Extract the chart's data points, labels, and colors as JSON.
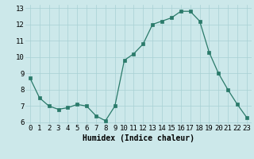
{
  "x": [
    0,
    1,
    2,
    3,
    4,
    5,
    6,
    7,
    8,
    9,
    10,
    11,
    12,
    13,
    14,
    15,
    16,
    17,
    18,
    19,
    20,
    21,
    22,
    23
  ],
  "y": [
    8.7,
    7.5,
    7.0,
    6.8,
    6.9,
    7.1,
    7.0,
    6.4,
    6.1,
    7.0,
    9.8,
    10.2,
    10.8,
    12.0,
    12.2,
    12.4,
    12.8,
    12.8,
    12.2,
    10.3,
    9.0,
    8.0,
    7.1,
    6.3
  ],
  "xlabel": "Humidex (Indice chaleur)",
  "line_color": "#2a7a6a",
  "marker_color": "#2a7a6a",
  "bg_color": "#cce8ea",
  "grid_color": "#a8d0d4",
  "xlim": [
    -0.5,
    23.5
  ],
  "ylim": [
    5.9,
    13.2
  ],
  "yticks": [
    6,
    7,
    8,
    9,
    10,
    11,
    12,
    13
  ],
  "xtick_labels": [
    "0",
    "1",
    "2",
    "3",
    "4",
    "5",
    "6",
    "7",
    "8",
    "9",
    "10",
    "11",
    "12",
    "13",
    "14",
    "15",
    "16",
    "17",
    "18",
    "19",
    "20",
    "21",
    "22",
    "23"
  ],
  "xlabel_fontsize": 7,
  "tick_fontsize": 6.5
}
